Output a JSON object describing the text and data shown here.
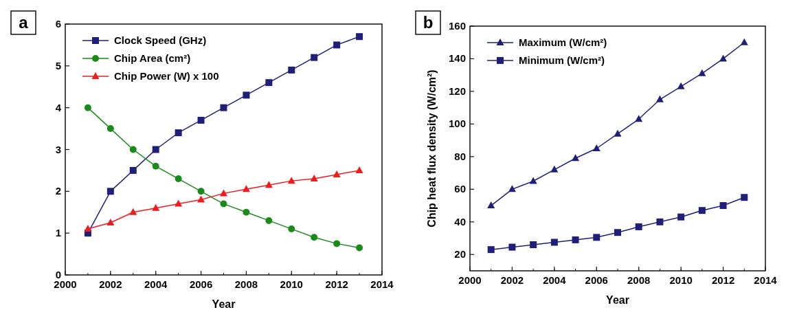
{
  "chart_data": [
    {
      "type": "line",
      "xlabel": "Year",
      "annotations": [
        "a"
      ],
      "x": [
        2001,
        2002,
        2003,
        2004,
        2005,
        2006,
        2007,
        2008,
        2009,
        2010,
        2011,
        2012,
        2013
      ],
      "series": [
        {
          "name": "Clock Speed (GHz)",
          "color": "#1f1f7a",
          "marker": "square",
          "values": [
            1,
            2,
            2.5,
            3,
            3.4,
            3.7,
            4,
            4.3,
            4.6,
            4.9,
            5.2,
            5.5,
            5.7
          ]
        },
        {
          "name": "Chip Area (cm²)",
          "color": "#1a8a1a",
          "marker": "circle",
          "values": [
            4,
            3.5,
            3,
            2.6,
            2.3,
            2,
            1.7,
            1.5,
            1.3,
            1.1,
            0.9,
            0.75,
            0.65
          ]
        },
        {
          "name": "Chip Power (W) x 100",
          "color": "#ee1c1c",
          "marker": "triangle",
          "values": [
            1.1,
            1.25,
            1.5,
            1.6,
            1.7,
            1.8,
            1.95,
            2.05,
            2.15,
            2.25,
            2.3,
            2.4,
            2.5
          ]
        }
      ],
      "xlim": [
        2000,
        2014
      ],
      "xticks": [
        2000,
        2002,
        2004,
        2006,
        2008,
        2010,
        2012,
        2014
      ],
      "ylim": [
        0,
        6
      ],
      "yticks": [
        0,
        1,
        2,
        3,
        4,
        5,
        6
      ],
      "legend": "top left",
      "grid": false
    },
    {
      "type": "line",
      "xlabel": "Year",
      "ylabel": "Chip heat flux density (W/cm²)",
      "annotations": [
        "b"
      ],
      "x": [
        2001,
        2002,
        2003,
        2004,
        2005,
        2006,
        2007,
        2008,
        2009,
        2010,
        2011,
        2012,
        2013
      ],
      "series": [
        {
          "name": "Maximum (W/cm²)",
          "color": "#1f1f7a",
          "marker": "triangle",
          "values": [
            50,
            60,
            65,
            72,
            79,
            85,
            94,
            103,
            115,
            123,
            131,
            140,
            150
          ]
        },
        {
          "name": "Minimum (W/cm²)",
          "color": "#1f1f7a",
          "marker": "square",
          "values": [
            23,
            24.5,
            26,
            27.5,
            29,
            30.5,
            33.5,
            37,
            40,
            43,
            47,
            50,
            55
          ]
        }
      ],
      "xlim": [
        2000,
        2014
      ],
      "xticks": [
        2000,
        2002,
        2004,
        2006,
        2008,
        2010,
        2012,
        2014
      ],
      "ylim": [
        10,
        160
      ],
      "yticks": [
        20,
        40,
        60,
        80,
        100,
        120,
        140,
        160
      ],
      "legend": "top left",
      "grid": false
    }
  ]
}
